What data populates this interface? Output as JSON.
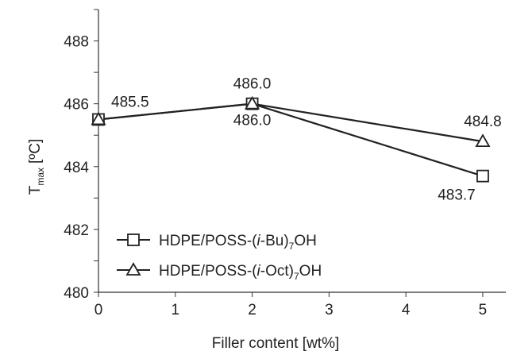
{
  "chart_data": {
    "type": "line",
    "title": "",
    "xlabel": "Filler content [wt%]",
    "ylabel": {
      "main": "T",
      "sub": "max",
      "unit": "[ºC]"
    },
    "xlim": [
      0,
      5.3
    ],
    "ylim": [
      480,
      489
    ],
    "xticks": [
      0,
      1,
      2,
      3,
      4,
      5
    ],
    "yticks": [
      480,
      482,
      484,
      486,
      488
    ],
    "grid": false,
    "legend_position": "bottom-left",
    "series": [
      {
        "name": "HDPE/POSS-(i-Bu)7OH",
        "legend": {
          "prefix": "HDPE/POSS-(",
          "italic": "i",
          "middle": "-Bu)",
          "sub": "7",
          "suffix": "OH"
        },
        "marker": "square",
        "x": [
          0,
          2,
          5
        ],
        "y": [
          485.5,
          486.0,
          483.7
        ],
        "labels": [
          "",
          "486.0",
          "483.7"
        ]
      },
      {
        "name": "HDPE/POSS-(i-Oct)7OH",
        "legend": {
          "prefix": "HDPE/POSS-(",
          "italic": "i",
          "middle": "-Oct)",
          "sub": "7",
          "suffix": "OH"
        },
        "marker": "triangle",
        "x": [
          0,
          2,
          5
        ],
        "y": [
          485.5,
          486.0,
          484.8
        ],
        "labels": [
          "485.5",
          "486.0",
          "484.8"
        ]
      }
    ],
    "colors": {
      "line": "#222222",
      "axis": "#333333",
      "marker_fill": "#ffffff"
    }
  }
}
